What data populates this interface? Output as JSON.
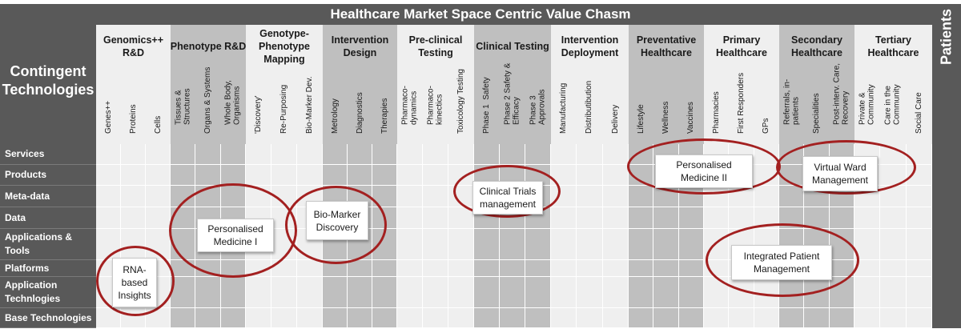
{
  "title": "Healthcare Market Space Centric Value Chasm",
  "left_header": "Contingent\nTechnologies",
  "patients_label": "Patients",
  "colors": {
    "header_bg": "#595959",
    "light_col": "#efefef",
    "dark_col": "#bfbfbf",
    "circle": "#a32020"
  },
  "groups": [
    {
      "label": "Genomics++\nR&D",
      "shade": "light",
      "subs": [
        "Genes++",
        "Proteins",
        "Cells"
      ]
    },
    {
      "label": "Phenotype R&D",
      "shade": "dark",
      "subs": [
        "Tissues &\nStructures",
        "Organs & Systems",
        "Whole Body,\nOrganisms"
      ]
    },
    {
      "label": "Genotype-\nPhenotype\nMapping",
      "shade": "light",
      "subs": [
        "'Discovery'",
        "Re-Purposing",
        "Bio-Marker Dev."
      ]
    },
    {
      "label": "Intervention\nDesign",
      "shade": "dark",
      "subs": [
        "Metrology",
        "Diagnostics",
        "Therapies"
      ]
    },
    {
      "label": "Pre-clinical\nTesting",
      "shade": "light",
      "subs": [
        "Pharmaco-\ndynamics",
        "Pharmaco-\nkinectics",
        "Toxicology Testing"
      ]
    },
    {
      "label": "Clinical Testing",
      "shade": "dark",
      "subs": [
        "Phase 1  Safety",
        "Phase 2 Safety &\nEfficacy",
        "Phase 3\nApprovals"
      ]
    },
    {
      "label": "Intervention\nDeployment",
      "shade": "light",
      "subs": [
        "Manufacturing",
        "Distributibution",
        "Delivery"
      ]
    },
    {
      "label": "Preventative\nHealthcare",
      "shade": "dark",
      "subs": [
        "Lifestyle",
        "Wellness",
        "Vaccines"
      ]
    },
    {
      "label": "Primary\nHealthcare",
      "shade": "light",
      "subs": [
        "Pharmacies",
        "First Responders",
        "GPs"
      ]
    },
    {
      "label": "Secondary\nHealthcare",
      "shade": "dark",
      "subs": [
        "Referrals, in-\npatients",
        "Specialities",
        "Post-interv. Care,\nRecovery"
      ]
    },
    {
      "label": "Tertiary\nHealthcare",
      "shade": "light",
      "subs": [
        "Private &\nCommunity",
        "Care in the\nCommunity",
        "Social Care"
      ]
    }
  ],
  "rows": [
    {
      "label": "Services"
    },
    {
      "label": "Products"
    },
    {
      "label": "Meta-data"
    },
    {
      "label": "Data"
    },
    {
      "label": "Applications &\nTools"
    },
    {
      "label": "Platforms"
    },
    {
      "label": "Application\nTechnlogies"
    },
    {
      "label": "Base Technologies"
    }
  ],
  "callouts": [
    {
      "name": "callout-rna-based-insights",
      "text": "RNA-\nbased\nInsights"
    },
    {
      "name": "callout-personalised-medicine-i",
      "text": "Personalised\nMedicine I"
    },
    {
      "name": "callout-bio-marker-discovery",
      "text": "Bio-Marker\nDiscovery"
    },
    {
      "name": "callout-clinical-trials-management",
      "text": "Clinical Trials\nmanagement"
    },
    {
      "name": "callout-personalised-medicine-ii",
      "text": "Personalised\nMedicine II"
    },
    {
      "name": "callout-virtual-ward-management",
      "text": "Virtual Ward\nManagement"
    },
    {
      "name": "callout-integrated-patient-management",
      "text": "Integrated Patient\nManagement"
    }
  ]
}
